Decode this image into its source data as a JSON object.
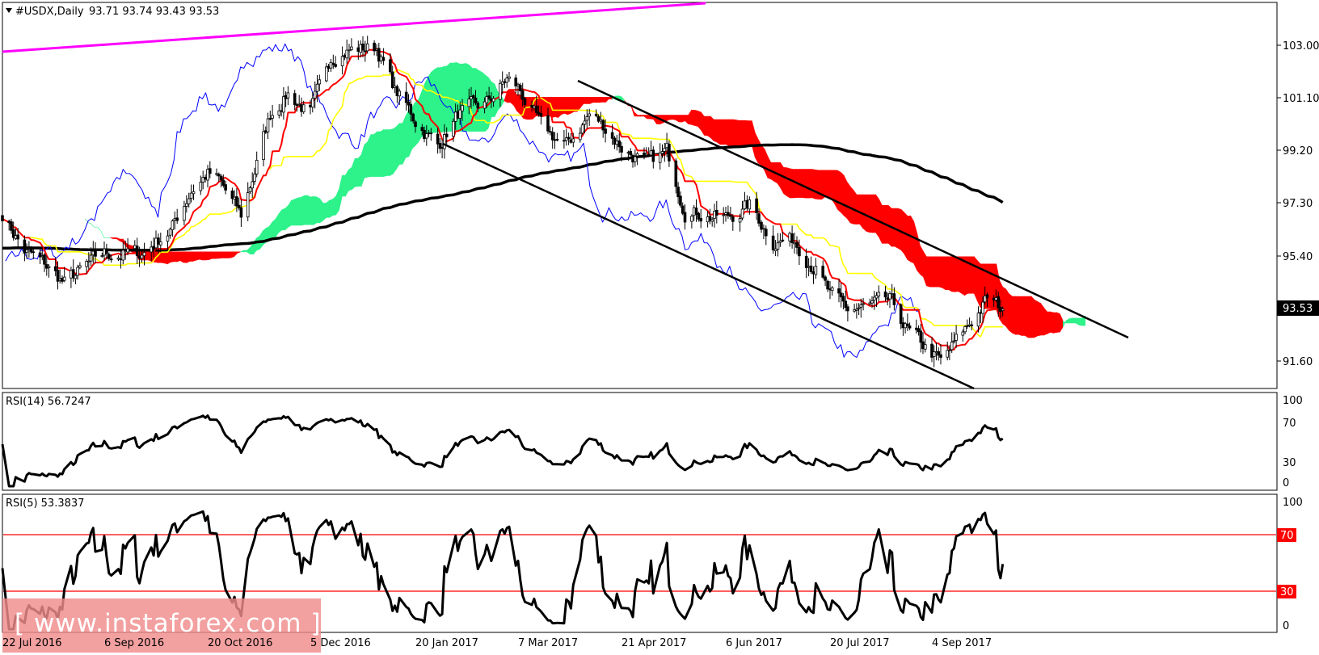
{
  "header": {
    "symbol": "#USDX,Daily",
    "ohlc": "93.71 93.74 93.43 93.53"
  },
  "current_price": "93.53",
  "watermark": "[ www.instaforex.com ]",
  "x_labels": [
    "22 Jul 2016",
    "6 Sep 2016",
    "20 Oct 2016",
    "5 Dec 2016",
    "20 Jan 2017",
    "7 Mar 2017",
    "21 Apr 2017",
    "6 Jun 2017",
    "20 Jul 2017",
    "4 Sep 2017"
  ],
  "colors": {
    "bull_cloud": "#2ef28a",
    "bear_cloud": "#ff0000",
    "tenkan": "#ff0000",
    "kijun": "#ffff00",
    "chikou": "#0000ff",
    "resistance": "#ff00ff",
    "ma": "#000000",
    "rsi_levels": "#ff0000"
  },
  "chart_data": [
    {
      "type": "candlestick",
      "title": "#USDX,Daily",
      "ylim": [
        90.6,
        104.95
      ],
      "y_ticks": [
        "103.00",
        "101.10",
        "99.20",
        "97.30",
        "95.40",
        "91.60"
      ],
      "overlays": [
        "Ichimoku cloud",
        "tenkan-sen",
        "kijun-sen",
        "chikou span",
        "moving average",
        "descending channel"
      ],
      "close_path": [
        [
          "22 Jul 2016",
          97.1
        ],
        [
          "1 Aug 2016",
          95.7
        ],
        [
          "10 Aug 2016",
          95.2
        ],
        [
          "19 Aug 2016",
          94.5
        ],
        [
          "6 Sep 2016",
          95.6
        ],
        [
          "22 Sep 2016",
          95.6
        ],
        [
          "5 Oct 2016",
          96.6
        ],
        [
          "13 Oct 2016",
          98.0
        ],
        [
          "20 Oct 2016",
          98.6
        ],
        [
          "25 Oct 2016",
          98.3
        ],
        [
          "4 Nov 2016",
          97.0
        ],
        [
          "10 Nov 2016",
          98.7
        ],
        [
          "17 Nov 2016",
          100.8
        ],
        [
          "25 Nov 2016",
          101.6
        ],
        [
          "5 Dec 2016",
          100.8
        ],
        [
          "9 Dec 2016",
          101.7
        ],
        [
          "14 Dec 2016",
          103.0
        ],
        [
          "20 Dec 2016",
          103.2
        ],
        [
          "3 Jan 2017",
          103.3
        ],
        [
          "11 Jan 2017",
          101.7
        ],
        [
          "20 Jan 2017",
          100.6
        ],
        [
          "30 Jan 2017",
          99.6
        ],
        [
          "8 Feb 2017",
          100.8
        ],
        [
          "21 Feb 2017",
          101.2
        ],
        [
          "2 Mar 2017",
          102.1
        ],
        [
          "7 Mar 2017",
          101.8
        ],
        [
          "17 Mar 2017",
          100.3
        ],
        [
          "28 Mar 2017",
          99.6
        ],
        [
          "7 Apr 2017",
          100.8
        ],
        [
          "13 Apr 2017",
          100.4
        ],
        [
          "21 Apr 2017",
          99.6
        ],
        [
          "2 May 2017",
          98.9
        ],
        [
          "11 May 2017",
          99.4
        ],
        [
          "19 May 2017",
          97.3
        ],
        [
          "31 May 2017",
          97.0
        ],
        [
          "6 Jun 2017",
          96.9
        ],
        [
          "16 Jun 2017",
          97.4
        ],
        [
          "26 Jun 2017",
          96.1
        ],
        [
          "5 Jul 2017",
          96.1
        ],
        [
          "14 Jul 2017",
          95.1
        ],
        [
          "20 Jul 2017",
          94.0
        ],
        [
          "28 Jul 2017",
          93.5
        ],
        [
          "7 Aug 2017",
          93.6
        ],
        [
          "16 Aug 2017",
          93.8
        ],
        [
          "25 Aug 2017",
          92.6
        ],
        [
          "4 Sep 2017",
          91.9
        ],
        [
          "8 Sep 2017",
          91.5
        ],
        [
          "15 Sep 2017",
          92.3
        ],
        [
          "22 Sep 2017",
          93.1
        ],
        [
          "29 Sep 2017",
          93.9
        ],
        [
          "6 Oct 2017",
          93.53
        ]
      ]
    },
    {
      "type": "line",
      "title": "RSI(14) 56.7247",
      "ylim": [
        0,
        100
      ],
      "y_ticks": [
        "100",
        "70",
        "30",
        "0"
      ],
      "last_value": 56.7247
    },
    {
      "type": "line",
      "title": "RSI(5) 53.3837",
      "ylim": [
        0,
        100
      ],
      "y_ticks": [
        "100",
        "70",
        "30",
        "0"
      ],
      "levels": [
        "70",
        "30"
      ],
      "last_value": 53.3837
    }
  ]
}
